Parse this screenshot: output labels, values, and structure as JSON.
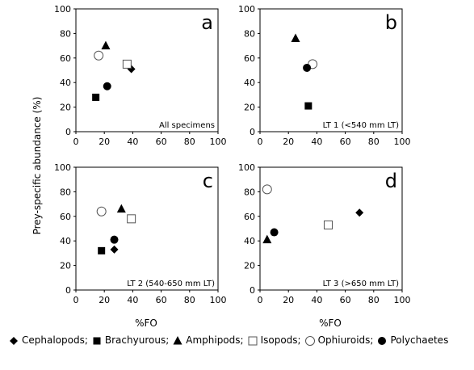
{
  "figure": {
    "ylabel": "Prey-specific abundance (%)",
    "xlabel": "%FO"
  },
  "legend": {
    "items": [
      {
        "label": "Cephalopods;",
        "marker": "diamond-filled"
      },
      {
        "label": "Brachyurous;",
        "marker": "square-filled"
      },
      {
        "label": "Amphipods;",
        "marker": "triangle-filled"
      },
      {
        "label": "Isopods;",
        "marker": "square-open"
      },
      {
        "label": "Ophiuroids;",
        "marker": "circle-open"
      },
      {
        "label": "Polychaetes",
        "marker": "circle-filled"
      }
    ]
  },
  "chart_data": [
    {
      "type": "scatter",
      "panel_letter": "a",
      "subtitle": "All specimens",
      "xlim": [
        0,
        100
      ],
      "ylim": [
        0,
        100
      ],
      "xticks": [
        0,
        20,
        40,
        60,
        80,
        100
      ],
      "yticks": [
        0,
        20,
        40,
        60,
        80,
        100
      ],
      "series": [
        {
          "name": "Cephalopods",
          "marker": "diamond-filled",
          "x": 39,
          "y": 51
        },
        {
          "name": "Brachyurous",
          "marker": "square-filled",
          "x": 14,
          "y": 28
        },
        {
          "name": "Amphipods",
          "marker": "triangle-filled",
          "x": 21,
          "y": 70
        },
        {
          "name": "Isopods",
          "marker": "square-open",
          "x": 36,
          "y": 55
        },
        {
          "name": "Ophiuroids",
          "marker": "circle-open",
          "x": 16,
          "y": 62
        },
        {
          "name": "Polychaetes",
          "marker": "circle-filled",
          "x": 22,
          "y": 37
        }
      ]
    },
    {
      "type": "scatter",
      "panel_letter": "b",
      "subtitle": "LT 1 (<540 mm LT)",
      "xlim": [
        0,
        100
      ],
      "ylim": [
        0,
        100
      ],
      "xticks": [
        0,
        20,
        40,
        60,
        80,
        100
      ],
      "yticks": [
        0,
        20,
        40,
        60,
        80,
        100
      ],
      "series": [
        {
          "name": "Brachyurous",
          "marker": "square-filled",
          "x": 34,
          "y": 21
        },
        {
          "name": "Amphipods",
          "marker": "triangle-filled",
          "x": 25,
          "y": 76
        },
        {
          "name": "Ophiuroids",
          "marker": "circle-open",
          "x": 37,
          "y": 55
        },
        {
          "name": "Polychaetes",
          "marker": "circle-filled",
          "x": 33,
          "y": 52
        }
      ]
    },
    {
      "type": "scatter",
      "panel_letter": "c",
      "subtitle": "LT 2 (540-650 mm LT)",
      "xlim": [
        0,
        100
      ],
      "ylim": [
        0,
        100
      ],
      "xticks": [
        0,
        20,
        40,
        60,
        80,
        100
      ],
      "yticks": [
        0,
        20,
        40,
        60,
        80,
        100
      ],
      "series": [
        {
          "name": "Cephalopods",
          "marker": "diamond-filled",
          "x": 27,
          "y": 33
        },
        {
          "name": "Brachyurous",
          "marker": "square-filled",
          "x": 18,
          "y": 32
        },
        {
          "name": "Amphipods",
          "marker": "triangle-filled",
          "x": 32,
          "y": 66
        },
        {
          "name": "Isopods",
          "marker": "square-open",
          "x": 39,
          "y": 58
        },
        {
          "name": "Ophiuroids",
          "marker": "circle-open",
          "x": 18,
          "y": 64
        },
        {
          "name": "Polychaetes",
          "marker": "circle-filled",
          "x": 27,
          "y": 41
        }
      ]
    },
    {
      "type": "scatter",
      "panel_letter": "d",
      "subtitle": "LT 3 (>650 mm LT)",
      "xlim": [
        0,
        100
      ],
      "ylim": [
        0,
        100
      ],
      "xticks": [
        0,
        20,
        40,
        60,
        80,
        100
      ],
      "yticks": [
        0,
        20,
        40,
        60,
        80,
        100
      ],
      "series": [
        {
          "name": "Cephalopods",
          "marker": "diamond-filled",
          "x": 70,
          "y": 63
        },
        {
          "name": "Amphipods",
          "marker": "triangle-filled",
          "x": 5,
          "y": 41
        },
        {
          "name": "Isopods",
          "marker": "square-open",
          "x": 48,
          "y": 53
        },
        {
          "name": "Ophiuroids",
          "marker": "circle-open",
          "x": 5,
          "y": 82
        },
        {
          "name": "Polychaetes",
          "marker": "circle-filled",
          "x": 10,
          "y": 47
        }
      ]
    }
  ]
}
